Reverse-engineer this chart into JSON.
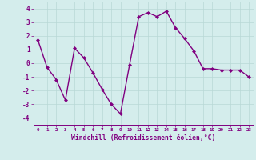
{
  "x": [
    0,
    1,
    2,
    3,
    4,
    5,
    6,
    7,
    8,
    9,
    10,
    11,
    12,
    13,
    14,
    15,
    16,
    17,
    18,
    19,
    20,
    21,
    22,
    23
  ],
  "y": [
    1.7,
    -0.3,
    -1.2,
    -2.7,
    1.1,
    0.4,
    -0.7,
    -1.9,
    -3.0,
    -3.7,
    -0.1,
    3.4,
    3.7,
    3.4,
    3.8,
    2.6,
    1.8,
    0.9,
    -0.4,
    -0.4,
    -0.5,
    -0.5,
    -0.5,
    -1.0
  ],
  "line_color": "#800080",
  "marker": "D",
  "marker_size": 2,
  "bg_color": "#d4edec",
  "grid_color": "#b8d8d6",
  "xlabel": "Windchill (Refroidissement éolien,°C)",
  "xlabel_color": "#800080",
  "tick_color": "#800080",
  "spine_color": "#800080",
  "ylim": [
    -4.5,
    4.5
  ],
  "xlim": [
    -0.5,
    23.5
  ],
  "yticks": [
    -4,
    -3,
    -2,
    -1,
    0,
    1,
    2,
    3,
    4
  ],
  "xticks": [
    0,
    1,
    2,
    3,
    4,
    5,
    6,
    7,
    8,
    9,
    10,
    11,
    12,
    13,
    14,
    15,
    16,
    17,
    18,
    19,
    20,
    21,
    22,
    23
  ],
  "ytick_fontsize": 5.5,
  "xtick_fontsize": 4.2,
  "xlabel_fontsize": 5.8,
  "linewidth": 1.0
}
